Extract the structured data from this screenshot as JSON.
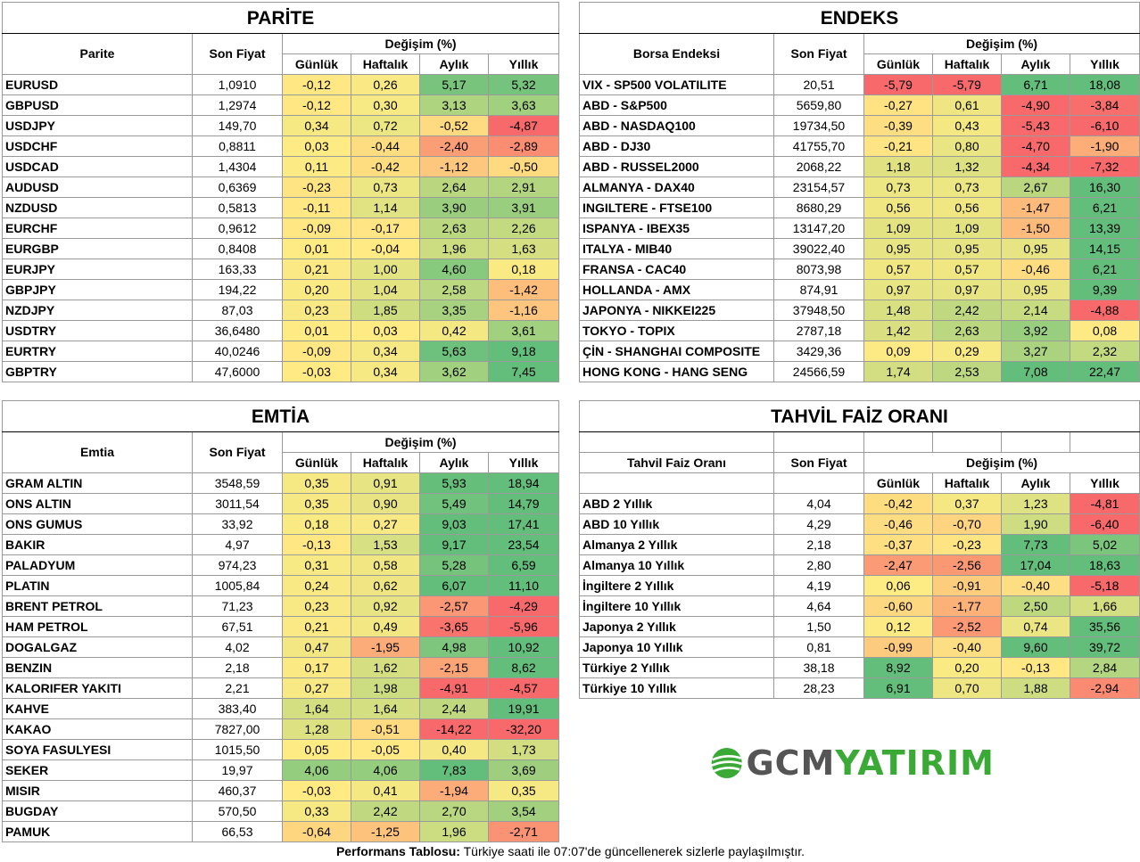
{
  "palette": {
    "d_red": "#f8696b",
    "d_green": "#63be7b",
    "d_yellow": "#ffeb84"
  },
  "parite": {
    "title": "PARİTE",
    "name_header": "Parite",
    "price_header": "Son Fiyat",
    "change_header": "Değişim (%)",
    "cols": [
      "Günlük",
      "Haftalık",
      "Aylık",
      "Yıllık"
    ],
    "rows": [
      {
        "name": "EURUSD",
        "price": "1,0910",
        "vals": [
          "-0,12",
          "0,26",
          "5,17",
          "5,32"
        ]
      },
      {
        "name": "GBPUSD",
        "price": "1,2974",
        "vals": [
          "-0,12",
          "0,30",
          "3,13",
          "3,63"
        ]
      },
      {
        "name": "USDJPY",
        "price": "149,70",
        "vals": [
          "0,34",
          "0,72",
          "-0,52",
          "-4,87"
        ]
      },
      {
        "name": "USDCHF",
        "price": "0,8811",
        "vals": [
          "0,03",
          "-0,44",
          "-2,40",
          "-2,89"
        ]
      },
      {
        "name": "USDCAD",
        "price": "1,4304",
        "vals": [
          "0,11",
          "-0,42",
          "-1,12",
          "-0,50"
        ]
      },
      {
        "name": "AUDUSD",
        "price": "0,6369",
        "vals": [
          "-0,23",
          "0,73",
          "2,64",
          "2,91"
        ]
      },
      {
        "name": "NZDUSD",
        "price": "0,5813",
        "vals": [
          "-0,11",
          "1,14",
          "3,90",
          "3,91"
        ]
      },
      {
        "name": "EURCHF",
        "price": "0,9612",
        "vals": [
          "-0,09",
          "-0,17",
          "2,63",
          "2,26"
        ]
      },
      {
        "name": "EURGBP",
        "price": "0,8408",
        "vals": [
          "0,01",
          "-0,04",
          "1,96",
          "1,63"
        ]
      },
      {
        "name": "EURJPY",
        "price": "163,33",
        "vals": [
          "0,21",
          "1,00",
          "4,60",
          "0,18"
        ]
      },
      {
        "name": "GBPJPY",
        "price": "194,22",
        "vals": [
          "0,20",
          "1,04",
          "2,58",
          "-1,42"
        ]
      },
      {
        "name": "NZDJPY",
        "price": "87,03",
        "vals": [
          "0,23",
          "1,85",
          "3,35",
          "-1,16"
        ]
      },
      {
        "name": "USDTRY",
        "price": "36,6480",
        "vals": [
          "0,01",
          "0,03",
          "0,42",
          "3,61"
        ]
      },
      {
        "name": "EURTRY",
        "price": "40,0246",
        "vals": [
          "-0,09",
          "0,34",
          "5,63",
          "9,18"
        ]
      },
      {
        "name": "GBPTRY",
        "price": "47,6000",
        "vals": [
          "-0,03",
          "0,34",
          "3,62",
          "7,45"
        ]
      }
    ]
  },
  "endeks": {
    "title": "ENDEKS",
    "name_header": "Borsa Endeksi",
    "price_header": "Son Fiyat",
    "change_header": "Değişim (%)",
    "cols": [
      "Günlük",
      "Haftalık",
      "Aylık",
      "Yıllık"
    ],
    "rows": [
      {
        "name": "VIX  - SP500 VOLATILITE",
        "price": "20,51",
        "vals": [
          "-5,79",
          "-5,79",
          "6,71",
          "18,08"
        ]
      },
      {
        "name": "ABD - S&P500",
        "price": "5659,80",
        "vals": [
          "-0,27",
          "0,61",
          "-4,90",
          "-3,84"
        ]
      },
      {
        "name": "ABD - NASDAQ100",
        "price": "19734,50",
        "vals": [
          "-0,39",
          "0,43",
          "-5,43",
          "-6,10"
        ]
      },
      {
        "name": "ABD - DJ30",
        "price": "41755,70",
        "vals": [
          "-0,21",
          "0,80",
          "-4,70",
          "-1,90"
        ]
      },
      {
        "name": "ABD - RUSSEL2000",
        "price": "2068,22",
        "vals": [
          "1,18",
          "1,32",
          "-4,34",
          "-7,32"
        ]
      },
      {
        "name": "ALMANYA - DAX40",
        "price": "23154,57",
        "vals": [
          "0,73",
          "0,73",
          "2,67",
          "16,30"
        ]
      },
      {
        "name": "INGILTERE - FTSE100",
        "price": "8680,29",
        "vals": [
          "0,56",
          "0,56",
          "-1,47",
          "6,21"
        ]
      },
      {
        "name": "ISPANYA - IBEX35",
        "price": "13147,20",
        "vals": [
          "1,09",
          "1,09",
          "-1,50",
          "13,39"
        ]
      },
      {
        "name": "ITALYA - MIB40",
        "price": "39022,40",
        "vals": [
          "0,95",
          "0,95",
          "0,95",
          "14,15"
        ]
      },
      {
        "name": "FRANSA - CAC40",
        "price": "8073,98",
        "vals": [
          "0,57",
          "0,57",
          "-0,46",
          "6,21"
        ]
      },
      {
        "name": "HOLLANDA - AMX",
        "price": "874,91",
        "vals": [
          "0,97",
          "0,97",
          "0,95",
          "9,39"
        ]
      },
      {
        "name": "JAPONYA - NIKKEI225",
        "price": "37948,50",
        "vals": [
          "1,48",
          "2,42",
          "2,14",
          "-4,88"
        ]
      },
      {
        "name": "TOKYO - TOPIX",
        "price": "2787,18",
        "vals": [
          "1,42",
          "2,63",
          "3,92",
          "0,08"
        ]
      },
      {
        "name": "ÇİN - SHANGHAI COMPOSITE",
        "price": "3429,36",
        "vals": [
          "0,09",
          "0,29",
          "3,27",
          "2,32"
        ]
      },
      {
        "name": "HONG KONG - HANG SENG",
        "price": "24566,59",
        "vals": [
          "1,74",
          "2,53",
          "7,08",
          "22,47"
        ]
      }
    ]
  },
  "emtia": {
    "title": "EMTİA",
    "name_header": "Emtia",
    "price_header": "Son Fiyat",
    "change_header": "Değişim (%)",
    "cols": [
      "Günlük",
      "Haftalık",
      "Aylık",
      "Yıllık"
    ],
    "rows": [
      {
        "name": "GRAM ALTIN",
        "price": "3548,59",
        "vals": [
          "0,35",
          "0,91",
          "5,93",
          "18,94"
        ]
      },
      {
        "name": "ONS ALTIN",
        "price": "3011,54",
        "vals": [
          "0,35",
          "0,90",
          "5,49",
          "14,79"
        ]
      },
      {
        "name": "ONS GUMUS",
        "price": "33,92",
        "vals": [
          "0,18",
          "0,27",
          "9,03",
          "17,41"
        ]
      },
      {
        "name": "BAKIR",
        "price": "4,97",
        "vals": [
          "-0,13",
          "1,53",
          "9,17",
          "23,54"
        ]
      },
      {
        "name": "PALADYUM",
        "price": "974,23",
        "vals": [
          "0,31",
          "0,58",
          "5,28",
          "6,59"
        ]
      },
      {
        "name": "PLATIN",
        "price": "1005,84",
        "vals": [
          "0,24",
          "0,62",
          "6,07",
          "11,10"
        ]
      },
      {
        "name": "BRENT PETROL",
        "price": "71,23",
        "vals": [
          "0,23",
          "0,92",
          "-2,57",
          "-4,29"
        ]
      },
      {
        "name": "HAM PETROL",
        "price": "67,51",
        "vals": [
          "0,21",
          "0,49",
          "-3,65",
          "-5,96"
        ]
      },
      {
        "name": "DOGALGAZ",
        "price": "4,02",
        "vals": [
          "0,47",
          "-1,95",
          "4,98",
          "10,92"
        ]
      },
      {
        "name": "BENZIN",
        "price": "2,18",
        "vals": [
          "0,17",
          "1,62",
          "-2,15",
          "8,62"
        ]
      },
      {
        "name": "KALORIFER YAKITI",
        "price": "2,21",
        "vals": [
          "0,27",
          "1,98",
          "-4,91",
          "-4,57"
        ]
      },
      {
        "name": "KAHVE",
        "price": "383,40",
        "vals": [
          "1,64",
          "1,64",
          "2,44",
          "19,91"
        ]
      },
      {
        "name": "KAKAO",
        "price": "7827,00",
        "vals": [
          "1,28",
          "-0,51",
          "-14,22",
          "-32,20"
        ]
      },
      {
        "name": "SOYA FASULYESI",
        "price": "1015,50",
        "vals": [
          "0,05",
          "-0,05",
          "0,40",
          "1,73"
        ]
      },
      {
        "name": "SEKER",
        "price": "19,97",
        "vals": [
          "4,06",
          "4,06",
          "7,83",
          "3,69"
        ]
      },
      {
        "name": "MISIR",
        "price": "460,37",
        "vals": [
          "-0,03",
          "0,41",
          "-1,94",
          "0,35"
        ]
      },
      {
        "name": "BUGDAY",
        "price": "570,50",
        "vals": [
          "0,33",
          "2,42",
          "2,70",
          "3,54"
        ]
      },
      {
        "name": "PAMUK",
        "price": "66,53",
        "vals": [
          "-0,64",
          "-1,25",
          "1,96",
          "-2,71"
        ]
      }
    ]
  },
  "tahvil": {
    "title": "TAHVİL FAİZ ORANI",
    "name_header": "Tahvil Faiz Oranı",
    "price_header": "Son Fiyat",
    "change_header": "Değişim (%)",
    "cols": [
      "Günlük",
      "Haftalık",
      "Aylık",
      "Yıllık"
    ],
    "rows": [
      {
        "name": "ABD 2 Yıllık",
        "price": "4,04",
        "vals": [
          "-0,42",
          "0,37",
          "1,23",
          "-4,81"
        ]
      },
      {
        "name": "ABD 10 Yıllık",
        "price": "4,29",
        "vals": [
          "-0,46",
          "-0,70",
          "1,90",
          "-6,40"
        ]
      },
      {
        "name": "Almanya 2 Yıllık",
        "price": "2,18",
        "vals": [
          "-0,37",
          "-0,23",
          "7,73",
          "5,02"
        ]
      },
      {
        "name": "Almanya 10 Yıllık",
        "price": "2,80",
        "vals": [
          "-2,47",
          "-2,56",
          "17,04",
          "18,63"
        ]
      },
      {
        "name": "İngiltere 2 Yıllık",
        "price": "4,19",
        "vals": [
          "0,06",
          "-0,91",
          "-0,40",
          "-5,18"
        ]
      },
      {
        "name": "İngiltere 10 Yıllık",
        "price": "4,64",
        "vals": [
          "-0,60",
          "-1,77",
          "2,50",
          "1,66"
        ]
      },
      {
        "name": "Japonya 2 Yıllık",
        "price": "1,50",
        "vals": [
          "0,12",
          "-2,52",
          "0,74",
          "35,56"
        ]
      },
      {
        "name": "Japonya 10 Yıllık",
        "price": "0,81",
        "vals": [
          "-0,99",
          "-0,40",
          "9,60",
          "39,72"
        ]
      },
      {
        "name": "Türkiye 2 Yıllık",
        "price": "38,18",
        "vals": [
          "8,92",
          "0,20",
          "-0,13",
          "2,84"
        ]
      },
      {
        "name": "Türkiye 10 Yıllık",
        "price": "28,23",
        "vals": [
          "6,91",
          "0,70",
          "1,88",
          "-2,94"
        ]
      }
    ]
  },
  "logo": {
    "part1": "GCM",
    "part2": "YATIRIM"
  },
  "footer": {
    "bold": "Performans Tablosu:",
    "text": " Türkiye saati ile 07:07'de güncellenerek sizlerle paylaşılmıştır."
  }
}
